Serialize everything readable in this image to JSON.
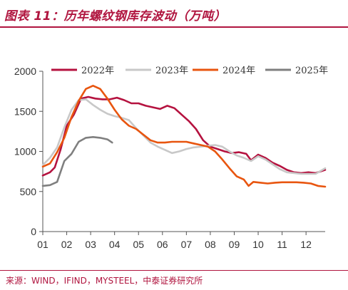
{
  "header": {
    "title": "图表 11：历年螺纹钢库存波动（万吨）"
  },
  "footer": {
    "source": "来源：WIND，IFIND，MYSTEEL，中泰证券研究所"
  },
  "colors": {
    "2022年": "#b5123f",
    "2023年": "#c8c8c8",
    "2024年": "#e8550f",
    "2025年": "#7f7f7f",
    "accent": "#b0153f"
  },
  "chart_data": {
    "type": "line",
    "ylim": [
      0,
      2000
    ],
    "yticks": [
      0,
      500,
      1000,
      1500,
      2000
    ],
    "xlim": [
      1,
      12.8
    ],
    "xticks": [
      "01",
      "02",
      "03",
      "04",
      "05",
      "06",
      "07",
      "08",
      "09",
      "10",
      "11",
      "12"
    ],
    "legend_position": "top",
    "series": [
      {
        "name": "2022年",
        "points": [
          [
            1.0,
            700
          ],
          [
            1.3,
            740
          ],
          [
            1.5,
            800
          ],
          [
            1.75,
            1030
          ],
          [
            2.0,
            1320
          ],
          [
            2.3,
            1460
          ],
          [
            2.6,
            1660
          ],
          [
            2.9,
            1680
          ],
          [
            3.2,
            1660
          ],
          [
            3.5,
            1650
          ],
          [
            3.8,
            1650
          ],
          [
            4.1,
            1670
          ],
          [
            4.4,
            1640
          ],
          [
            4.7,
            1600
          ],
          [
            5.0,
            1600
          ],
          [
            5.3,
            1570
          ],
          [
            5.6,
            1550
          ],
          [
            5.9,
            1530
          ],
          [
            6.2,
            1570
          ],
          [
            6.5,
            1540
          ],
          [
            6.8,
            1460
          ],
          [
            7.1,
            1380
          ],
          [
            7.4,
            1280
          ],
          [
            7.7,
            1140
          ],
          [
            8.0,
            1060
          ],
          [
            8.3,
            1030
          ],
          [
            8.6,
            1000
          ],
          [
            8.9,
            980
          ],
          [
            9.2,
            990
          ],
          [
            9.5,
            970
          ],
          [
            9.7,
            890
          ],
          [
            10.0,
            960
          ],
          [
            10.3,
            920
          ],
          [
            10.6,
            860
          ],
          [
            10.9,
            820
          ],
          [
            11.2,
            770
          ],
          [
            11.5,
            740
          ],
          [
            11.8,
            730
          ],
          [
            12.1,
            740
          ],
          [
            12.4,
            730
          ],
          [
            12.8,
            770
          ]
        ]
      },
      {
        "name": "2023年",
        "points": [
          [
            1.0,
            830
          ],
          [
            1.3,
            920
          ],
          [
            1.6,
            1050
          ],
          [
            1.9,
            1300
          ],
          [
            2.2,
            1520
          ],
          [
            2.5,
            1640
          ],
          [
            2.8,
            1650
          ],
          [
            3.1,
            1580
          ],
          [
            3.4,
            1520
          ],
          [
            3.7,
            1470
          ],
          [
            4.0,
            1440
          ],
          [
            4.3,
            1420
          ],
          [
            4.6,
            1390
          ],
          [
            4.9,
            1290
          ],
          [
            5.2,
            1200
          ],
          [
            5.5,
            1110
          ],
          [
            5.8,
            1060
          ],
          [
            6.1,
            1020
          ],
          [
            6.4,
            980
          ],
          [
            6.7,
            1000
          ],
          [
            7.0,
            1030
          ],
          [
            7.3,
            1050
          ],
          [
            7.6,
            1060
          ],
          [
            7.9,
            1070
          ],
          [
            8.2,
            1080
          ],
          [
            8.5,
            1060
          ],
          [
            8.8,
            1000
          ],
          [
            9.1,
            950
          ],
          [
            9.4,
            920
          ],
          [
            9.7,
            880
          ],
          [
            10.0,
            940
          ],
          [
            10.3,
            900
          ],
          [
            10.6,
            840
          ],
          [
            10.9,
            780
          ],
          [
            11.2,
            740
          ],
          [
            11.5,
            730
          ],
          [
            11.8,
            720
          ],
          [
            12.1,
            720
          ],
          [
            12.4,
            720
          ],
          [
            12.8,
            790
          ]
        ]
      },
      {
        "name": "2024年",
        "points": [
          [
            1.0,
            810
          ],
          [
            1.3,
            850
          ],
          [
            1.6,
            990
          ],
          [
            1.9,
            1170
          ],
          [
            2.2,
            1430
          ],
          [
            2.5,
            1630
          ],
          [
            2.8,
            1780
          ],
          [
            3.1,
            1820
          ],
          [
            3.4,
            1780
          ],
          [
            3.7,
            1660
          ],
          [
            4.0,
            1520
          ],
          [
            4.3,
            1400
          ],
          [
            4.6,
            1320
          ],
          [
            4.9,
            1280
          ],
          [
            5.2,
            1210
          ],
          [
            5.5,
            1140
          ],
          [
            5.8,
            1110
          ],
          [
            6.1,
            1110
          ],
          [
            6.4,
            1120
          ],
          [
            6.7,
            1120
          ],
          [
            7.0,
            1120
          ],
          [
            7.3,
            1100
          ],
          [
            7.6,
            1080
          ],
          [
            7.9,
            1060
          ],
          [
            8.2,
            1000
          ],
          [
            8.5,
            900
          ],
          [
            8.8,
            790
          ],
          [
            9.1,
            690
          ],
          [
            9.4,
            650
          ],
          [
            9.6,
            570
          ],
          [
            9.8,
            620
          ],
          [
            10.1,
            610
          ],
          [
            10.4,
            600
          ],
          [
            10.7,
            610
          ],
          [
            11.0,
            615
          ],
          [
            11.3,
            615
          ],
          [
            11.6,
            615
          ],
          [
            11.9,
            610
          ],
          [
            12.2,
            600
          ],
          [
            12.5,
            570
          ],
          [
            12.8,
            560
          ]
        ]
      },
      {
        "name": "2025年",
        "points": [
          [
            1.0,
            570
          ],
          [
            1.3,
            580
          ],
          [
            1.6,
            620
          ],
          [
            1.9,
            880
          ],
          [
            2.2,
            970
          ],
          [
            2.5,
            1120
          ],
          [
            2.8,
            1170
          ],
          [
            3.1,
            1180
          ],
          [
            3.4,
            1170
          ],
          [
            3.7,
            1150
          ],
          [
            3.9,
            1110
          ]
        ]
      }
    ]
  }
}
